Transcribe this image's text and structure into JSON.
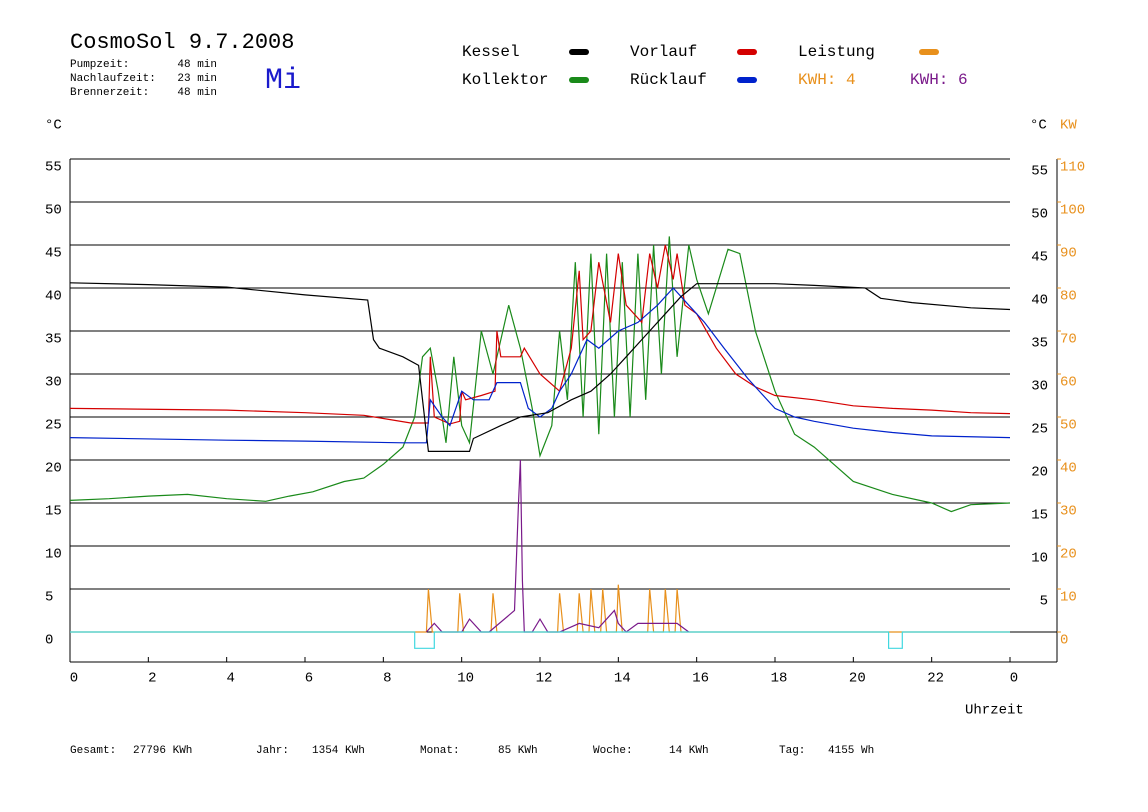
{
  "header": {
    "title": "CosmoSol 9.7.2008",
    "day": "Mi",
    "stats": [
      {
        "label": "Pumpzeit:",
        "value": "48 min"
      },
      {
        "label": "Nachlaufzeit:",
        "value": "23 min"
      },
      {
        "label": "Brennerzeit:",
        "value": "48 min"
      }
    ]
  },
  "chart_data": {
    "type": "line",
    "y_label": "°C",
    "y2_label_c": "°C",
    "y2_label": "KW",
    "x_label": "Uhrzeit",
    "xlim": [
      0,
      24
    ],
    "xticks": [
      0,
      2,
      4,
      6,
      8,
      10,
      12,
      14,
      16,
      18,
      20,
      22,
      {
        "value": 24,
        "label": "0"
      }
    ],
    "ylim": [
      -3.5,
      55
    ],
    "yticks": [
      0,
      5,
      10,
      15,
      20,
      25,
      30,
      35,
      40,
      45,
      50,
      55
    ],
    "y2lim": [
      -7,
      110
    ],
    "y2ticks": [
      0,
      10,
      20,
      30,
      40,
      50,
      60,
      70,
      80,
      90,
      100,
      110
    ],
    "grid": true,
    "annotations": [
      {
        "text": "KWH: 4",
        "color": "#e8901c"
      }
    ],
    "series": [
      {
        "name": "Kessel",
        "color": "#000000",
        "x": [
          0,
          2,
          4,
          6,
          7.6,
          7.75,
          7.9,
          8.5,
          8.9,
          9.05,
          9.15,
          10.2,
          10.3,
          11,
          11.5,
          12.2,
          12.8,
          13.3,
          13.8,
          14.2,
          14.6,
          15.2,
          15.6,
          16,
          18,
          19,
          20.3,
          20.7,
          21.5,
          23,
          24
        ],
        "values": [
          40.6,
          40.4,
          40.1,
          39.2,
          38.6,
          34,
          33,
          32,
          31,
          25,
          21,
          21,
          22.5,
          24,
          25,
          25.5,
          27,
          28,
          30,
          32,
          34,
          37,
          39,
          40.5,
          40.5,
          40.3,
          40,
          38.8,
          38.3,
          37.7,
          37.5
        ]
      },
      {
        "name": "Vorlauf",
        "color": "#d40000",
        "x": [
          0,
          4,
          6,
          7.5,
          8.7,
          9.15,
          9.2,
          9.3,
          9.7,
          9.95,
          10,
          10.1,
          10.5,
          10.85,
          10.9,
          11,
          11.5,
          11.6,
          12,
          12.5,
          12.8,
          13.0,
          13.1,
          13.3,
          13.5,
          13.8,
          14.0,
          14.2,
          14.6,
          14.8,
          15.0,
          15.2,
          15.4,
          15.5,
          15.7,
          16,
          16.5,
          17,
          17.5,
          18,
          19,
          20,
          21,
          22,
          23,
          24
        ],
        "values": [
          26,
          25.8,
          25.5,
          25.2,
          24.3,
          24.3,
          32,
          25,
          24.2,
          24.5,
          28,
          27,
          27.5,
          28,
          35,
          32,
          32,
          33,
          30,
          28,
          33,
          42,
          34,
          35,
          43,
          36,
          44,
          38,
          36,
          44,
          40,
          45,
          41,
          44,
          38,
          37,
          33,
          30,
          28.5,
          27.5,
          27,
          26.3,
          26,
          25.8,
          25.5,
          25.4
        ]
      },
      {
        "name": "Leistung",
        "color": "#e8901c",
        "axis": "y2",
        "x": [
          0,
          9.1,
          9.15,
          9.25,
          9.9,
          9.95,
          10.05,
          10.75,
          10.8,
          10.9,
          12.45,
          12.5,
          12.6,
          12.95,
          13.0,
          13.1,
          13.25,
          13.3,
          13.4,
          13.55,
          13.6,
          13.7,
          13.95,
          14.0,
          14.1,
          14.75,
          14.8,
          14.9,
          15.15,
          15.2,
          15.3,
          15.45,
          15.5,
          15.6,
          15.8,
          24
        ],
        "values": [
          0,
          0,
          10,
          0,
          0,
          9,
          0,
          0,
          9,
          0,
          0,
          9,
          0,
          0,
          9,
          0,
          0,
          10,
          0,
          0,
          10,
          0,
          0,
          11,
          0,
          0,
          10,
          0,
          0,
          10,
          0,
          0,
          10,
          0,
          0,
          0
        ]
      },
      {
        "name": "Kollektor",
        "color": "#1a8a1a",
        "x": [
          0,
          1,
          2,
          3,
          4,
          5,
          5.6,
          6.2,
          7,
          7.5,
          8,
          8.5,
          8.8,
          9.0,
          9.2,
          9.4,
          9.6,
          9.8,
          10,
          10.2,
          10.5,
          10.8,
          11.2,
          11.5,
          11.8,
          12,
          12.3,
          12.5,
          12.7,
          12.9,
          13.1,
          13.3,
          13.5,
          13.7,
          13.9,
          14.1,
          14.3,
          14.5,
          14.7,
          14.9,
          15.1,
          15.3,
          15.5,
          15.8,
          16,
          16.3,
          16.8,
          17.1,
          17.5,
          18,
          18.5,
          19,
          19.5,
          20,
          21,
          22,
          22.5,
          23,
          24
        ],
        "values": [
          15.3,
          15.5,
          15.8,
          16,
          15.5,
          15.2,
          15.8,
          16.3,
          17.5,
          17.9,
          19.5,
          21.5,
          25,
          32,
          33,
          28,
          22,
          32,
          24,
          22,
          35,
          30,
          38,
          33,
          26,
          20.5,
          24,
          35,
          27,
          43,
          25,
          44,
          23,
          44,
          25,
          43,
          25,
          44,
          27,
          45,
          30,
          46,
          32,
          45,
          41,
          37,
          44.5,
          44,
          35,
          28,
          23,
          21.5,
          19.5,
          17.5,
          16,
          15,
          14,
          14.8,
          15
        ]
      },
      {
        "name": "Rücklauf",
        "color": "#0022cc",
        "x": [
          0,
          4,
          6,
          8.5,
          9.1,
          9.2,
          9.5,
          9.7,
          10,
          10.3,
          10.7,
          10.9,
          11.5,
          11.7,
          12,
          12.3,
          12.5,
          12.8,
          13.2,
          13.5,
          14,
          14.5,
          15,
          15.4,
          15.8,
          16.2,
          16.7,
          17.3,
          18,
          18.5,
          19,
          20,
          21,
          22,
          24
        ],
        "values": [
          22.6,
          22.3,
          22.2,
          22,
          22,
          27,
          25,
          24,
          28,
          27,
          27,
          29,
          29,
          26,
          25,
          26,
          28,
          30,
          34,
          33,
          35,
          36,
          38,
          40,
          38,
          36,
          33,
          29.5,
          26,
          25,
          24.5,
          23.7,
          23.2,
          22.8,
          22.6
        ]
      },
      {
        "name": "KWH: 6",
        "color": "#7a1a8a",
        "axis": "y2",
        "legend_marker": false,
        "x": [
          9.1,
          9.3,
          9.5,
          10,
          10.2,
          10.5,
          10.7,
          11.35,
          11.45,
          11.5,
          11.55,
          11.6,
          11.8,
          12,
          12.2,
          12.5,
          13,
          13.5,
          13.9,
          14,
          14.2,
          14.5,
          15,
          15.5,
          15.8
        ],
        "values": [
          0,
          2,
          0,
          0,
          3,
          0,
          0,
          5,
          30,
          40,
          12,
          0,
          0,
          3,
          0,
          0,
          2,
          1,
          5,
          2,
          0,
          2,
          2,
          2,
          0
        ]
      },
      {
        "color": "#40d8e0",
        "x": [
          0,
          8.8,
          8.8,
          9.3,
          9.3,
          20.9,
          20.9,
          21.25,
          21.25,
          24
        ],
        "values": [
          0,
          0,
          -1.9,
          -1.9,
          0,
          0,
          -1.9,
          -1.9,
          0,
          0
        ]
      }
    ]
  },
  "footer": [
    {
      "label": "Gesamt:",
      "value": "27796 KWh"
    },
    {
      "label": "Jahr:",
      "value": "1354 KWh"
    },
    {
      "label": "Monat:",
      "value": "85 KWh"
    },
    {
      "label": "Woche:",
      "value": "14 KWh"
    },
    {
      "label": "Tag:",
      "value": "4155 Wh"
    }
  ]
}
